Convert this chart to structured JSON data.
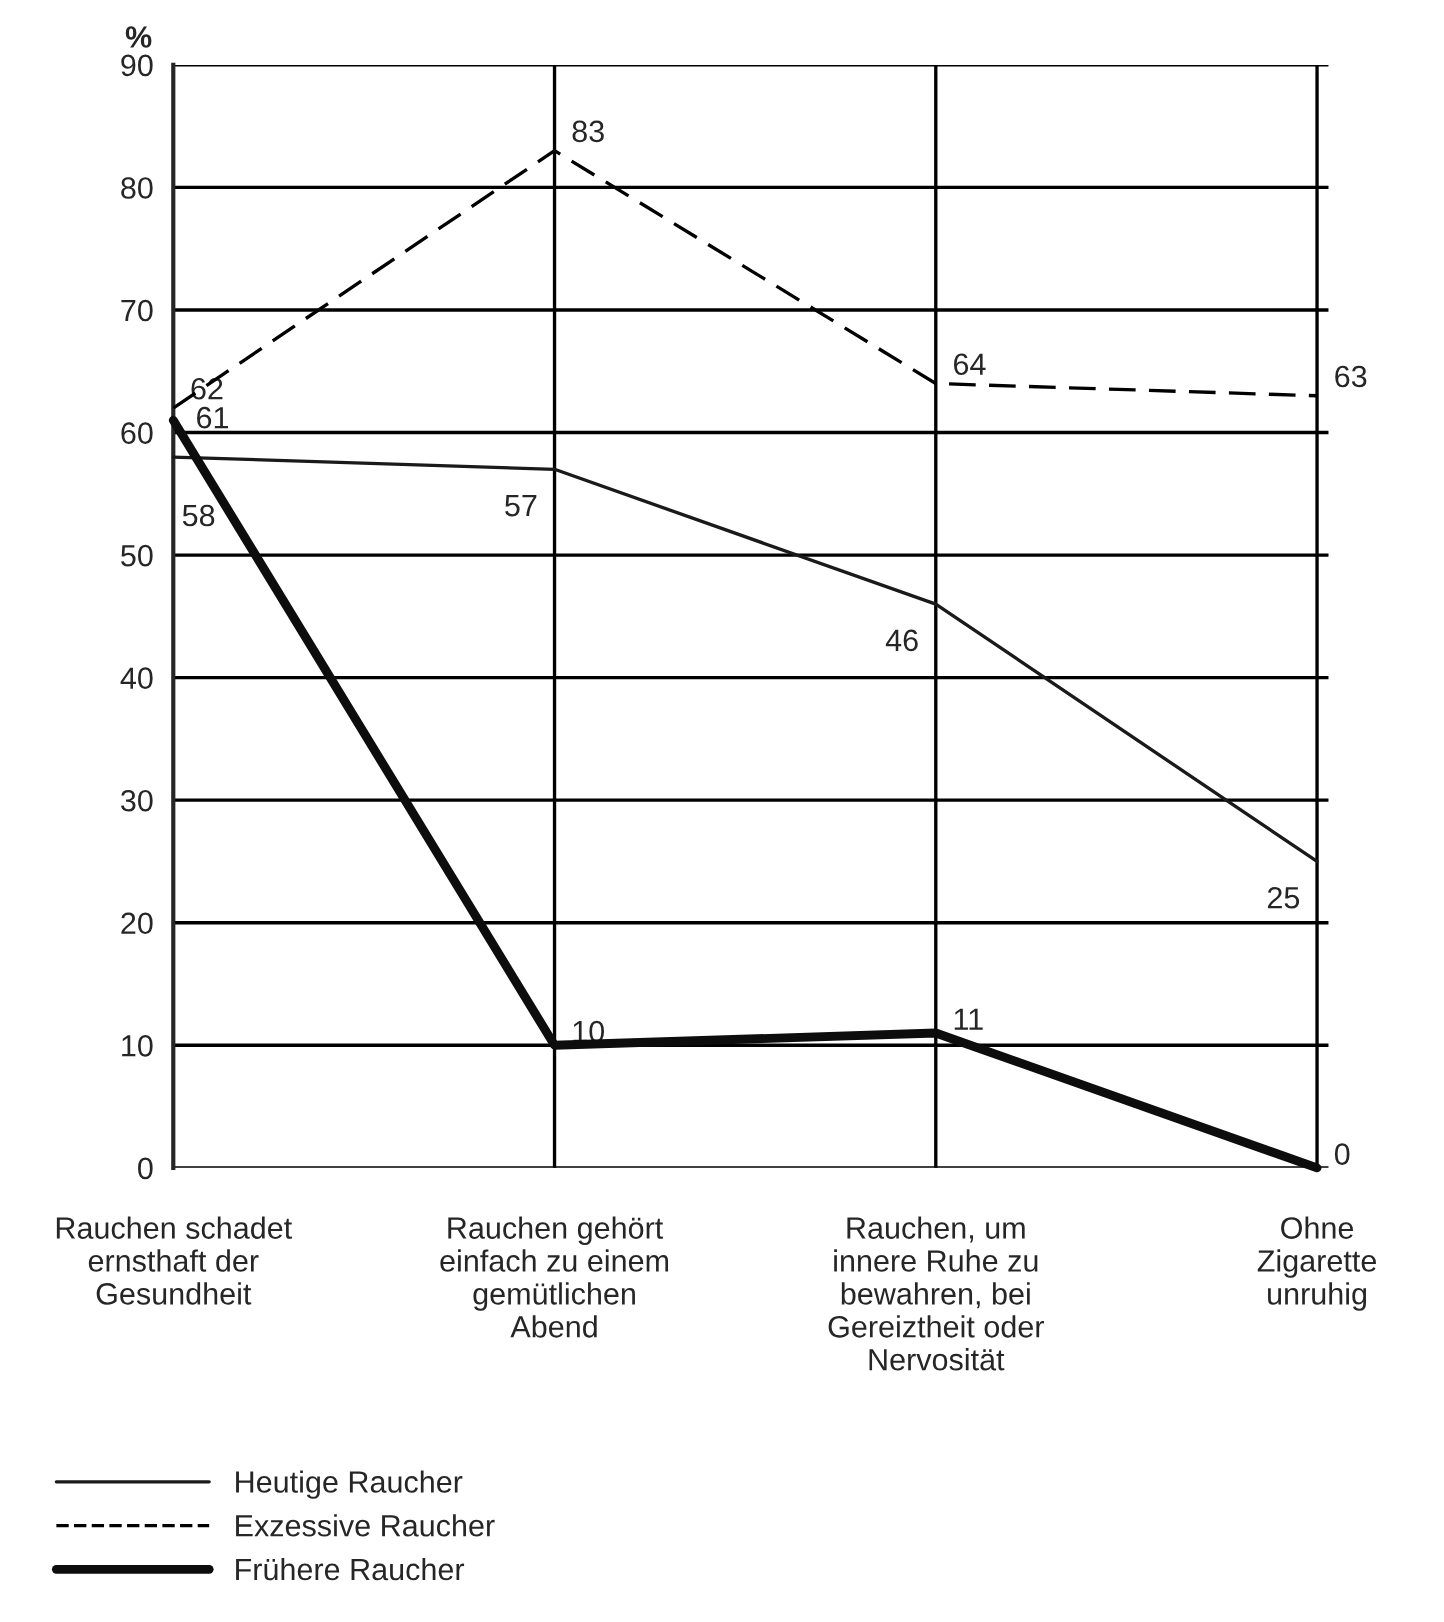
{
  "chart_data": {
    "type": "line",
    "ylabel": "%",
    "categories": [
      "Rauchen schadet\nernsthaft der\nGesundheit",
      "Rauchen gehört\neinfach zu einem\ngemütlichen\nAbend",
      "Rauchen, um\ninnere Ruhe zu\nbewahren, bei\nGereiztheit oder\nNervosität",
      "Ohne\nZigarette\nunruhig"
    ],
    "series": [
      {
        "name": "Heutige Raucher",
        "color": "#1a1a1a",
        "line_style": "solid",
        "values": [
          58,
          57,
          46,
          25
        ]
      },
      {
        "name": "Exzessive Raucher",
        "color": "#000000",
        "line_style": "dashed",
        "values": [
          62,
          83,
          64,
          63
        ]
      },
      {
        "name": "Frühere Raucher",
        "color": "#0d0d0d",
        "line_style": "solid",
        "values": [
          61,
          10,
          11,
          0
        ]
      }
    ],
    "ylim": [
      0,
      90
    ],
    "yticks": [
      0,
      10,
      20,
      30,
      40,
      50,
      60,
      70,
      80,
      90
    ],
    "grid": true,
    "legend": "bottom left",
    "data_labels": true,
    "marker": "none"
  }
}
